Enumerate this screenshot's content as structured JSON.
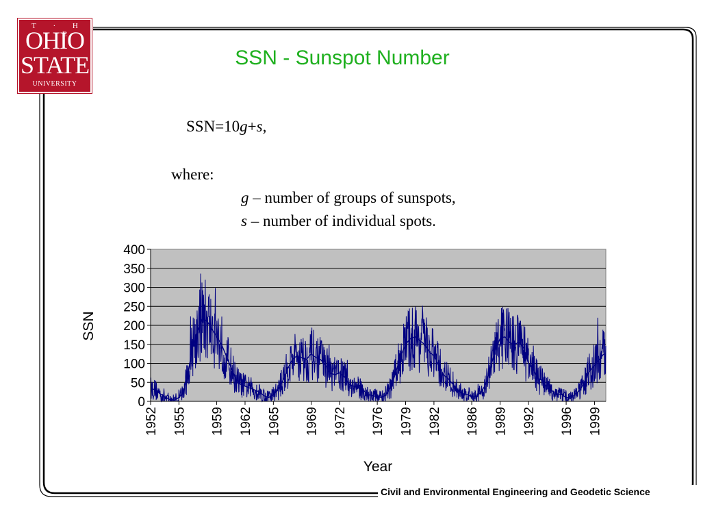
{
  "logo": {
    "line1": "T · H · E",
    "line2": "OHIO",
    "line3": "STATE",
    "line4": "UNIVERSITY"
  },
  "slide": {
    "title": "SSN - Sunspot Number",
    "formula_lhs": "SSN=10",
    "formula_g": "g",
    "formula_plus": "+",
    "formula_s": "s",
    "formula_end": ",",
    "where": "where:",
    "def_g_var": "g",
    "def_g_text": " – number of groups of sunspots,",
    "def_s_var": "s",
    "def_s_text": " – number of individual spots.",
    "footer": "Civil and Environmental Engineering and Geodetic Science"
  },
  "colors": {
    "title": "#1fb01f",
    "series": "#000080",
    "plot_bg": "#c0c0c0",
    "logo": "#b5152b"
  },
  "chart_data": {
    "type": "line",
    "title": "",
    "xlabel": "Year",
    "ylabel": "SSN",
    "xlim": [
      1952,
      2000.2
    ],
    "ylim": [
      0,
      400
    ],
    "y_ticks": [
      0,
      50,
      100,
      150,
      200,
      250,
      300,
      350,
      400
    ],
    "x_tick_labels": [
      "1952",
      "1955",
      "1959",
      "1962",
      "1965",
      "1969",
      "1972",
      "1976",
      "1979",
      "1982",
      "1986",
      "1989",
      "1992",
      "1996",
      "1999"
    ],
    "grid": true,
    "legend": "none",
    "series": [
      {
        "x": [
          1952.0,
          1952.5,
          1953.0,
          1953.5,
          1954.0,
          1954.5,
          1955.0,
          1955.5,
          1956.0,
          1956.5,
          1957.0,
          1957.5,
          1958.0,
          1958.5,
          1959.0,
          1959.5,
          1960.0,
          1960.5,
          1961.0,
          1961.5,
          1962.0,
          1962.5,
          1963.0,
          1963.5,
          1964.0,
          1964.5,
          1965.0,
          1965.5,
          1966.0,
          1966.5,
          1967.0,
          1967.5,
          1968.0,
          1968.5,
          1969.0,
          1969.5,
          1970.0,
          1970.5,
          1971.0,
          1971.5,
          1972.0,
          1972.5,
          1973.0,
          1973.5,
          1974.0,
          1974.5,
          1975.0,
          1975.5,
          1976.0,
          1976.5,
          1977.0,
          1977.5,
          1978.0,
          1978.5,
          1979.0,
          1979.5,
          1980.0,
          1980.5,
          1981.0,
          1981.5,
          1982.0,
          1982.5,
          1983.0,
          1983.5,
          1984.0,
          1984.5,
          1985.0,
          1985.5,
          1986.0,
          1986.5,
          1987.0,
          1987.5,
          1988.0,
          1988.5,
          1989.0,
          1989.5,
          1990.0,
          1990.5,
          1991.0,
          1991.5,
          1992.0,
          1992.5,
          1993.0,
          1993.5,
          1994.0,
          1994.5,
          1995.0,
          1995.5,
          1996.0,
          1996.5,
          1997.0,
          1997.5,
          1998.0,
          1998.5,
          1999.0,
          1999.5,
          2000.0
        ],
        "values": [
          35,
          30,
          20,
          12,
          5,
          3,
          10,
          25,
          80,
          150,
          190,
          220,
          210,
          190,
          170,
          150,
          120,
          90,
          60,
          45,
          40,
          35,
          30,
          25,
          15,
          10,
          18,
          30,
          55,
          85,
          110,
          120,
          115,
          110,
          125,
          115,
          110,
          95,
          75,
          70,
          75,
          65,
          45,
          40,
          35,
          30,
          18,
          15,
          12,
          10,
          20,
          40,
          80,
          120,
          150,
          165,
          170,
          160,
          150,
          130,
          120,
          95,
          70,
          60,
          45,
          30,
          20,
          18,
          12,
          12,
          25,
          45,
          90,
          135,
          165,
          170,
          155,
          150,
          155,
          140,
          100,
          85,
          60,
          55,
          35,
          28,
          20,
          18,
          10,
          8,
          20,
          30,
          55,
          80,
          95,
          110,
          125
        ]
      }
    ]
  }
}
